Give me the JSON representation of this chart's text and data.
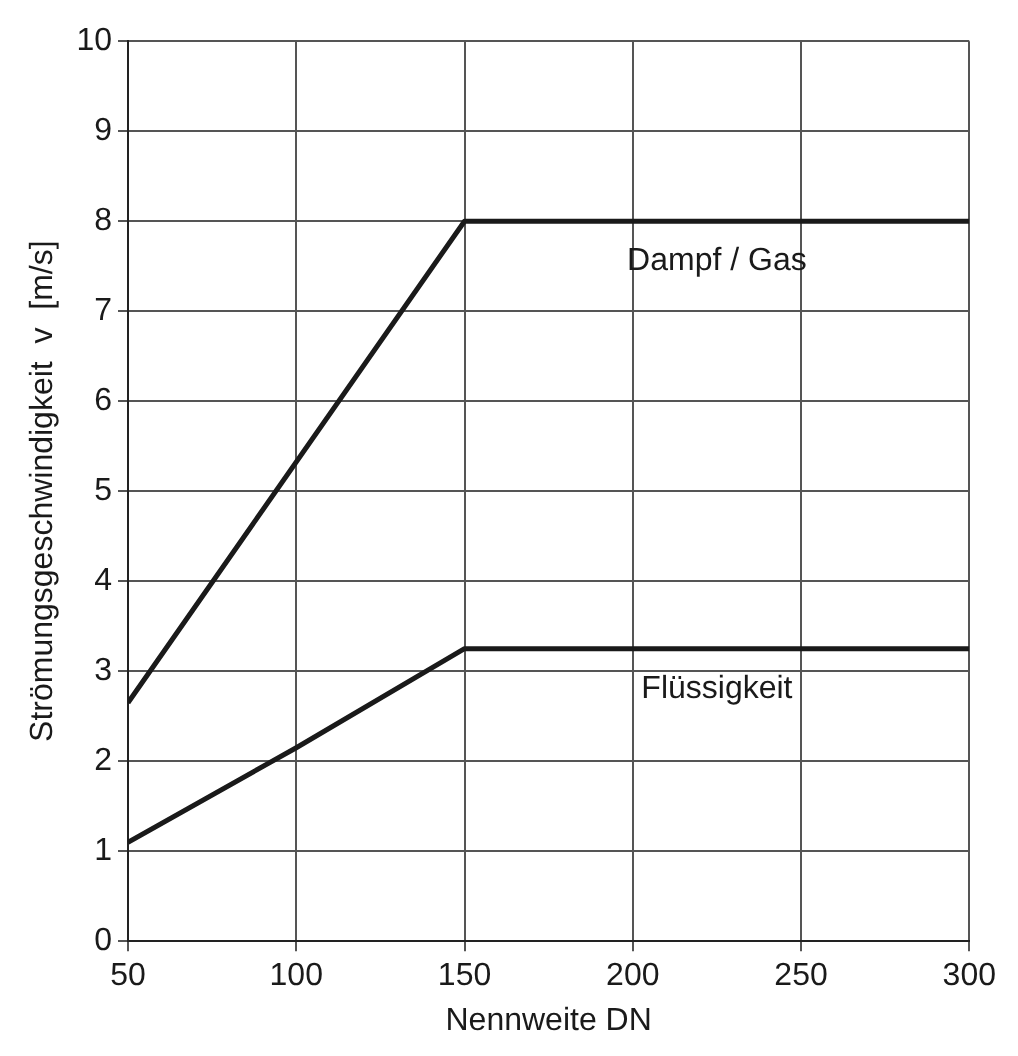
{
  "chart_data": {
    "type": "line",
    "xlabel": "Nennweite DN",
    "ylabel": "Strömungsgeschwindigkeit  v  [m/s]",
    "xlim": [
      50,
      300
    ],
    "xticks": [
      50,
      100,
      150,
      200,
      250,
      300
    ],
    "ylim": [
      0,
      10
    ],
    "yticks": [
      0,
      1,
      2,
      3,
      4,
      5,
      6,
      7,
      8,
      9,
      10
    ],
    "grid": true,
    "legend": false,
    "marker": "none",
    "line_style": "solid",
    "series": [
      {
        "name": "Dampf / Gas",
        "color": "#1a1a1a",
        "x": [
          50,
          150,
          300
        ],
        "values": [
          2.65,
          8,
          8
        ]
      },
      {
        "name": "Flüssigkeit",
        "color": "#1a1a1a",
        "x": [
          50,
          100,
          150,
          300
        ],
        "values": [
          1.1,
          2.15,
          3.25,
          3.25
        ]
      }
    ]
  }
}
